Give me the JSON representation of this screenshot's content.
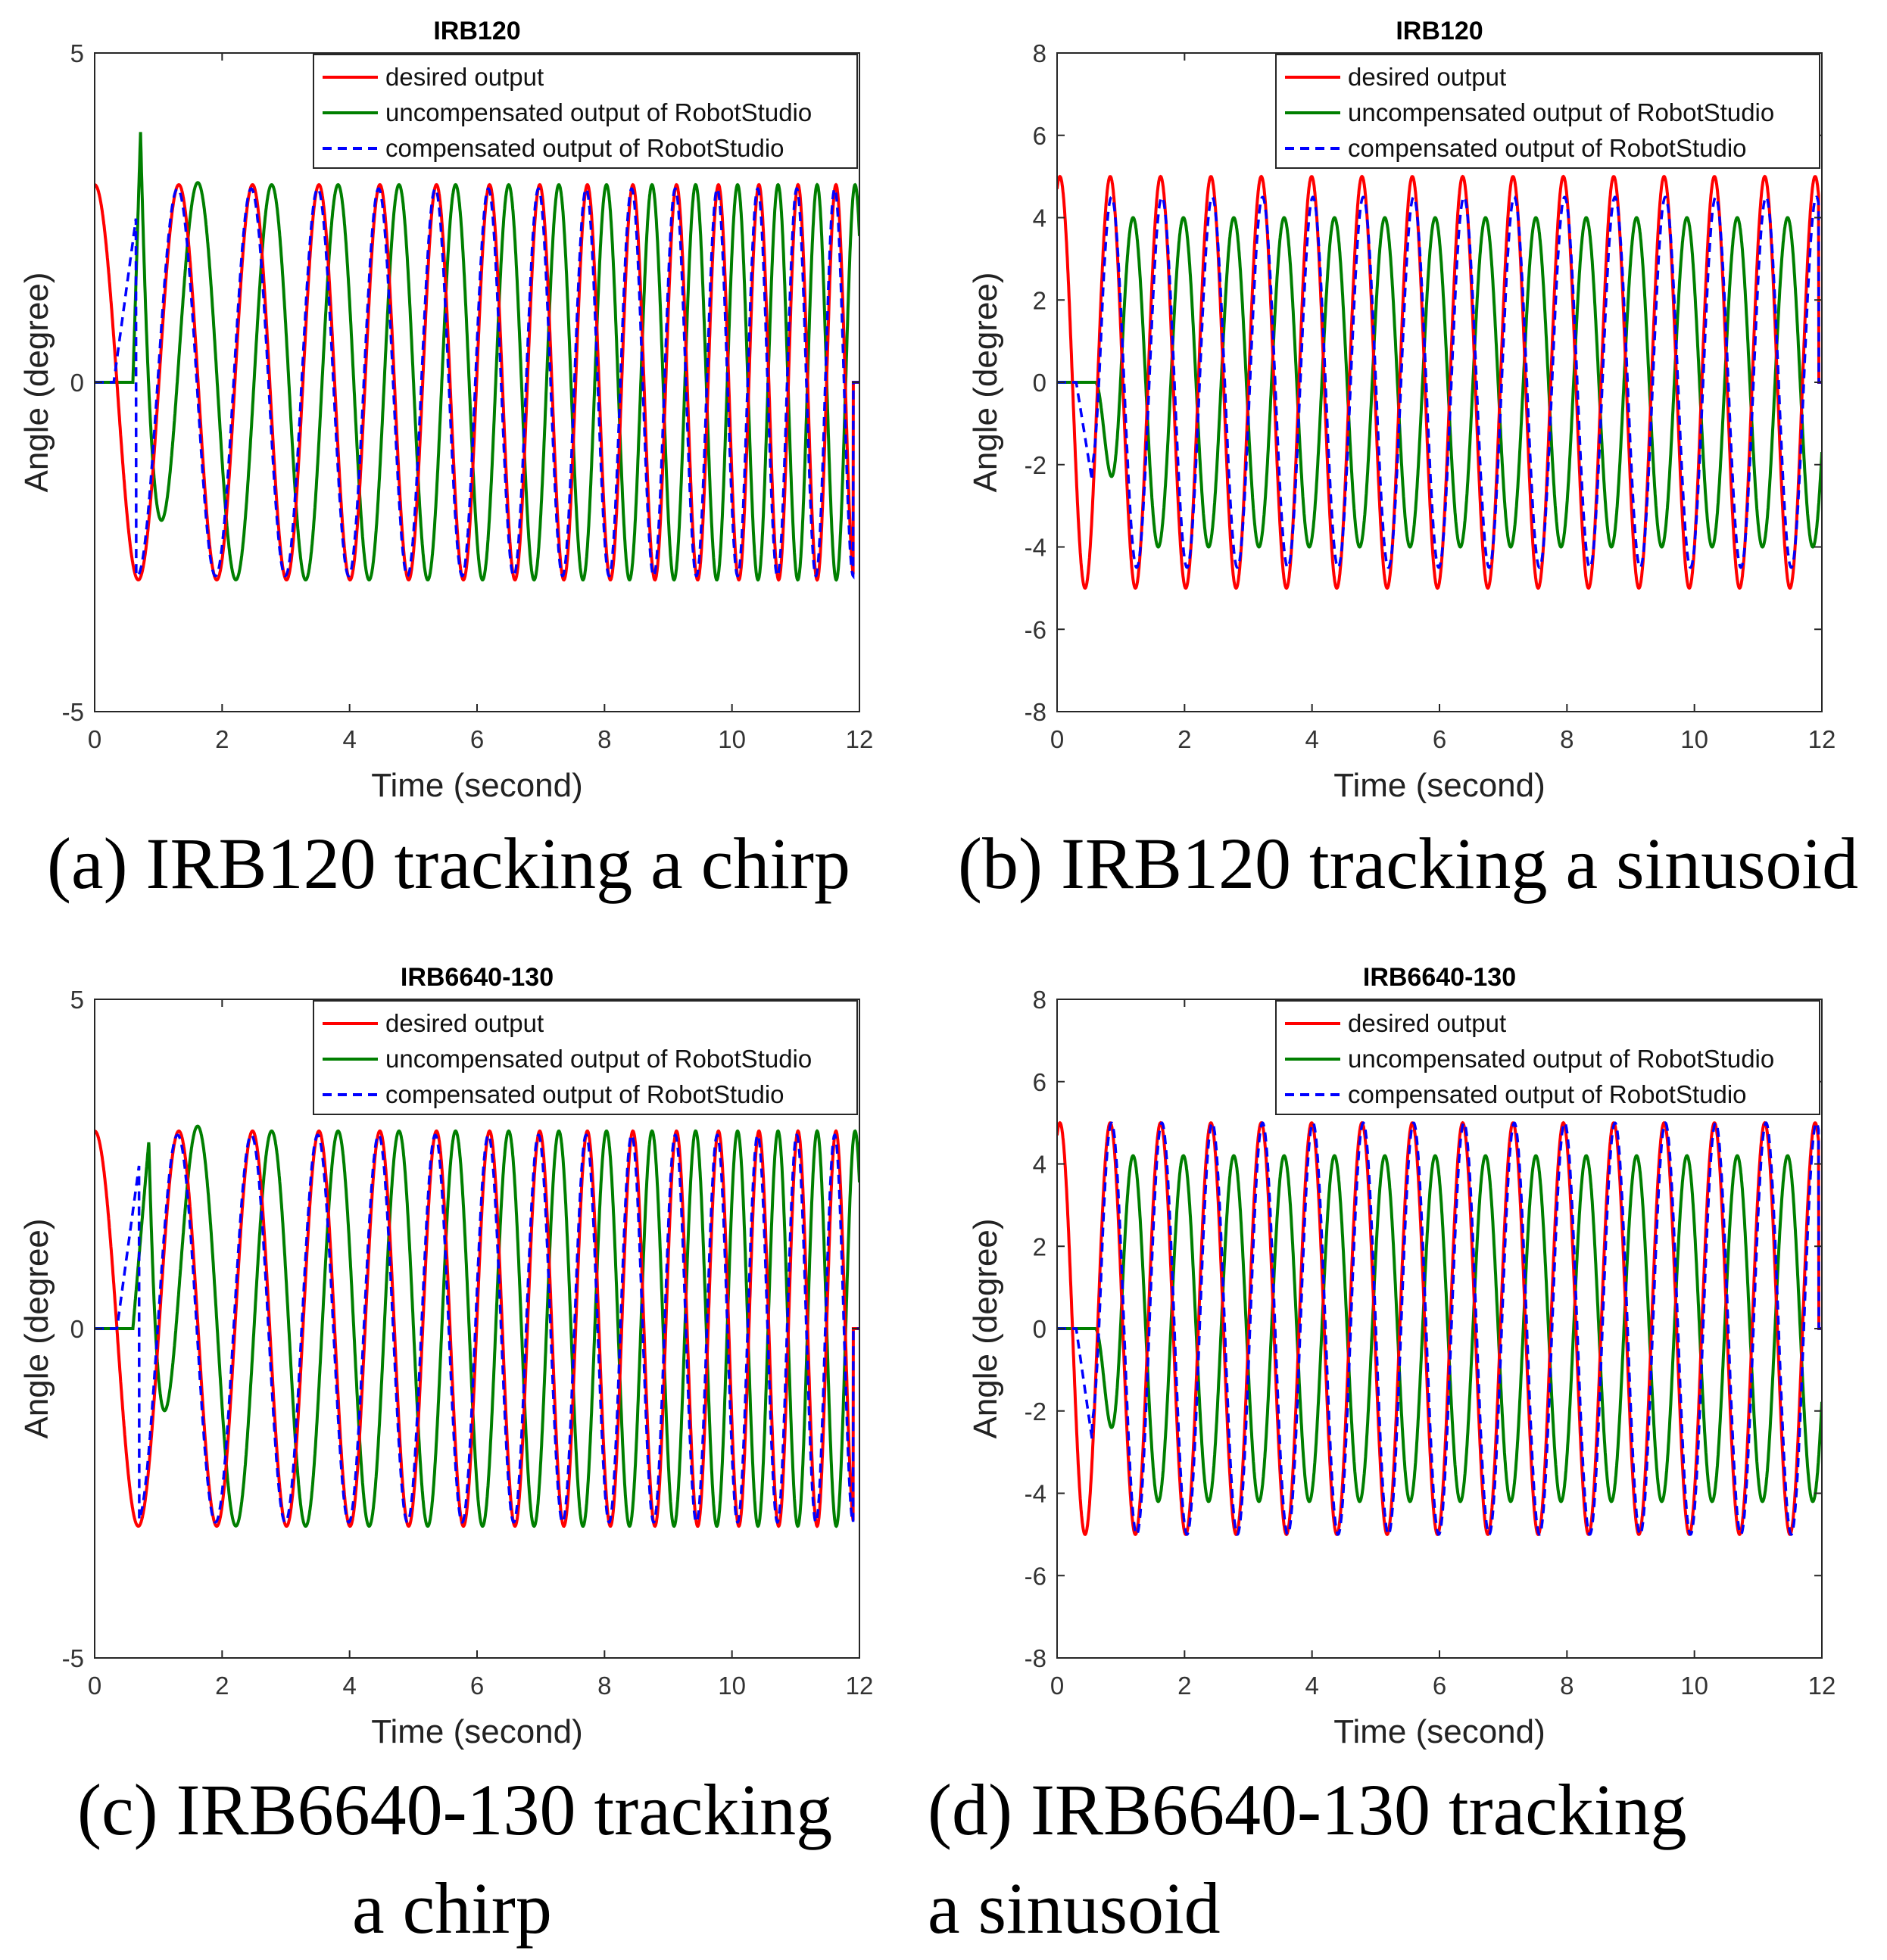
{
  "colors": {
    "desired": "#ff0000",
    "uncompensated": "#007f00",
    "compensated": "#0000ff"
  },
  "legend": {
    "desired": "desired output",
    "uncompensated": "uncompensated output of RobotStudio",
    "compensated": "compensated output of RobotStudio"
  },
  "captions": {
    "a": "(a) IRB120 tracking a chirp",
    "b": "(b) IRB120 tracking a sinusoid",
    "c1": "(c) IRB6640-130 tracking",
    "c2": "a chirp",
    "d1": "(d) IRB6640-130 tracking",
    "d2": "a sinusoid"
  },
  "chart_data": [
    {
      "id": "a",
      "type": "line",
      "title": "IRB120",
      "xlabel": "Time (second)",
      "ylabel": "Angle (degree)",
      "xlim": [
        0,
        12
      ],
      "ylim": [
        -5,
        5
      ],
      "xticks": [
        0,
        2,
        4,
        6,
        8,
        10,
        12
      ],
      "yticks": [
        -5,
        0,
        5
      ],
      "signal": "chirp",
      "amplitude": 3,
      "t_end": 11.9,
      "uncompensated": {
        "delay": 0.3,
        "start": 0.6,
        "overshoot_peak": 3.8,
        "overshoot_time": 0.72
      },
      "compensated": {
        "start": 0.3,
        "rise_end": 0.65,
        "rise_value": 2.5,
        "scale": 0.98
      },
      "series": [
        {
          "name": "desired output",
          "style": "solid"
        },
        {
          "name": "uncompensated output of RobotStudio",
          "style": "solid"
        },
        {
          "name": "compensated output of RobotStudio",
          "style": "dashed"
        }
      ]
    },
    {
      "id": "b",
      "type": "line",
      "title": "IRB120",
      "xlabel": "Time (second)",
      "ylabel": "Angle (degree)",
      "xlim": [
        0,
        12
      ],
      "ylim": [
        -8,
        8
      ],
      "xticks": [
        0,
        2,
        4,
        6,
        8,
        10,
        12
      ],
      "yticks": [
        -8,
        -6,
        -4,
        -2,
        0,
        2,
        4,
        6,
        8
      ],
      "signal": "sinusoid",
      "amplitude": 5,
      "period": 0.79,
      "t_end": 11.95,
      "uncompensated": {
        "amplitude": 4.0,
        "start": 0.6,
        "phase_lag": 0.25
      },
      "compensated": {
        "amplitude": 4.5,
        "start": 0.3,
        "first_trough": -2.4
      },
      "series": [
        {
          "name": "desired output",
          "style": "solid"
        },
        {
          "name": "uncompensated output of RobotStudio",
          "style": "solid"
        },
        {
          "name": "compensated output of RobotStudio",
          "style": "dashed"
        }
      ]
    },
    {
      "id": "c",
      "type": "line",
      "title": "IRB6640-130",
      "xlabel": "Time (second)",
      "ylabel": "Angle (degree)",
      "xlim": [
        0,
        12
      ],
      "ylim": [
        -5,
        5
      ],
      "xticks": [
        0,
        2,
        4,
        6,
        8,
        10,
        12
      ],
      "yticks": [
        -5,
        0,
        5
      ],
      "signal": "chirp",
      "amplitude": 3,
      "t_end": 11.9,
      "uncompensated": {
        "delay": 0.3,
        "start": 0.6,
        "overshoot_peak": 2.85,
        "overshoot_time": 0.85
      },
      "compensated": {
        "start": 0.35,
        "rise_end": 0.7,
        "rise_value": 2.5,
        "scale": 0.98
      },
      "series": [
        {
          "name": "desired output",
          "style": "solid"
        },
        {
          "name": "uncompensated output of RobotStudio",
          "style": "solid"
        },
        {
          "name": "compensated output of RobotStudio",
          "style": "dashed"
        }
      ]
    },
    {
      "id": "d",
      "type": "line",
      "title": "IRB6640-130",
      "xlabel": "Time (second)",
      "ylabel": "Angle (degree)",
      "xlim": [
        0,
        12
      ],
      "ylim": [
        -8,
        8
      ],
      "xticks": [
        0,
        2,
        4,
        6,
        8,
        10,
        12
      ],
      "yticks": [
        -8,
        -6,
        -4,
        -2,
        0,
        2,
        4,
        6,
        8
      ],
      "signal": "sinusoid",
      "amplitude": 5,
      "period": 0.79,
      "t_end": 11.95,
      "uncompensated": {
        "amplitude": 4.2,
        "start": 0.6,
        "phase_lag": 0.25
      },
      "compensated": {
        "amplitude": 5.0,
        "start": 0.3,
        "first_trough": -2.7
      },
      "series": [
        {
          "name": "desired output",
          "style": "solid"
        },
        {
          "name": "uncompensated output of RobotStudio",
          "style": "solid"
        },
        {
          "name": "compensated output of RobotStudio",
          "style": "dashed"
        }
      ]
    }
  ]
}
